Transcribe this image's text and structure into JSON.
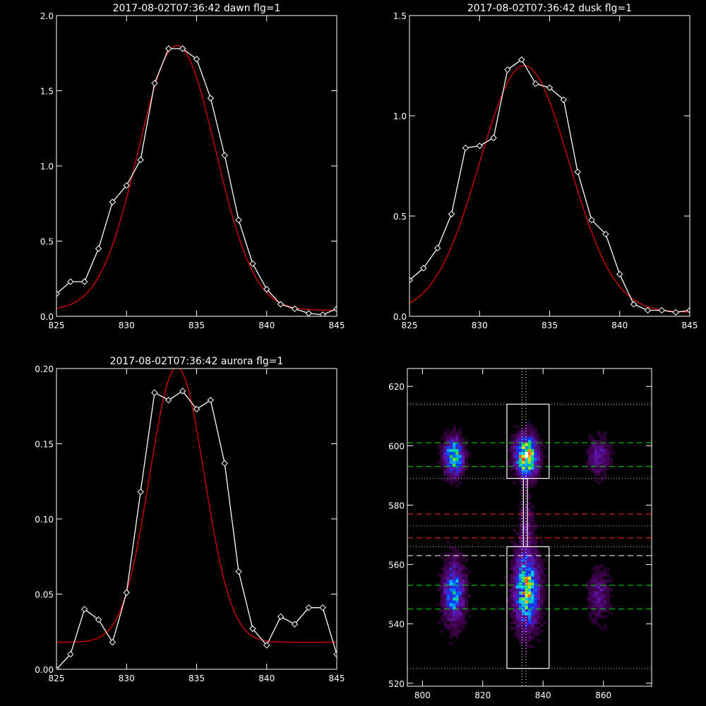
{
  "chart_data": [
    {
      "id": "dawn",
      "type": "line",
      "title": "2017-08-02T07:36:42 dawn flg=1",
      "xlim": [
        825,
        845
      ],
      "ylim": [
        0,
        2.0
      ],
      "xticks": [
        825,
        830,
        835,
        840,
        845
      ],
      "xtick_labels": [
        "825",
        "830",
        "835",
        "840",
        "845"
      ],
      "yticks": [
        0,
        0.5,
        1.0,
        1.5,
        2.0
      ],
      "ytick_labels": [
        "0.0",
        "0.5",
        "1.0",
        "1.5",
        "2.0"
      ],
      "series": [
        {
          "kind": "data",
          "color": "#ffffff",
          "marker": "diamond",
          "x": [
            825,
            826,
            827,
            828,
            829,
            830,
            831,
            832,
            833,
            834,
            835,
            836,
            837,
            838,
            839,
            840,
            841,
            842,
            843,
            844,
            845
          ],
          "y": [
            0.15,
            0.23,
            0.23,
            0.45,
            0.76,
            0.87,
            1.04,
            1.55,
            1.78,
            1.78,
            1.71,
            1.45,
            1.07,
            0.64,
            0.35,
            0.18,
            0.08,
            0.05,
            0.02,
            0.01,
            0.05
          ]
        },
        {
          "kind": "fit",
          "color": "#e00000",
          "model": "gaussian",
          "center": 833.6,
          "sigma": 2.75,
          "amplitude": 1.76,
          "baseline": 0.04
        }
      ]
    },
    {
      "id": "dusk",
      "type": "line",
      "title": "2017-08-02T07:36:42 dusk flg=1",
      "xlim": [
        825,
        845
      ],
      "ylim": [
        0,
        1.5
      ],
      "xticks": [
        825,
        830,
        835,
        840,
        845
      ],
      "xtick_labels": [
        "825",
        "830",
        "835",
        "840",
        "845"
      ],
      "yticks": [
        0,
        0.5,
        1.0,
        1.5
      ],
      "ytick_labels": [
        "0.0",
        "0.5",
        "1.0",
        "1.5"
      ],
      "series": [
        {
          "kind": "data",
          "color": "#ffffff",
          "marker": "diamond",
          "x": [
            825,
            826,
            827,
            828,
            829,
            830,
            831,
            832,
            833,
            834,
            835,
            836,
            837,
            838,
            839,
            840,
            841,
            842,
            843,
            844,
            845
          ],
          "y": [
            0.18,
            0.24,
            0.34,
            0.51,
            0.84,
            0.85,
            0.89,
            1.23,
            1.28,
            1.16,
            1.14,
            1.08,
            0.72,
            0.48,
            0.41,
            0.21,
            0.06,
            0.03,
            0.03,
            0.02,
            0.03
          ]
        },
        {
          "kind": "fit",
          "color": "#e00000",
          "model": "gaussian",
          "center": 833.2,
          "sigma": 3.2,
          "amplitude": 1.23,
          "baseline": 0.02
        }
      ]
    },
    {
      "id": "aurora",
      "type": "line",
      "title": "2017-08-02T07:36:42 aurora flg=1",
      "xlim": [
        825,
        845
      ],
      "ylim": [
        0,
        0.2
      ],
      "xticks": [
        825,
        830,
        835,
        840,
        845
      ],
      "xtick_labels": [
        "825",
        "830",
        "835",
        "840",
        "845"
      ],
      "yticks": [
        0,
        0.05,
        0.1,
        0.15,
        0.2
      ],
      "ytick_labels": [
        "0.00",
        "0.05",
        "0.10",
        "0.15",
        "0.20"
      ],
      "series": [
        {
          "kind": "data",
          "color": "#ffffff",
          "marker": "diamond",
          "x": [
            825,
            826,
            827,
            828,
            829,
            830,
            831,
            832,
            833,
            834,
            835,
            836,
            837,
            838,
            839,
            840,
            841,
            842,
            843,
            844,
            845
          ],
          "y": [
            0.0,
            0.01,
            0.04,
            0.033,
            0.018,
            0.051,
            0.118,
            0.184,
            0.179,
            0.185,
            0.173,
            0.179,
            0.137,
            0.065,
            0.027,
            0.016,
            0.035,
            0.03,
            0.041,
            0.041,
            0.01
          ]
        },
        {
          "kind": "fit",
          "color": "#e00000",
          "model": "gaussian",
          "center": 833.6,
          "sigma": 1.95,
          "amplitude": 0.183,
          "baseline": 0.018
        }
      ]
    },
    {
      "id": "image",
      "type": "heatmap",
      "title": "",
      "xlim": [
        795,
        876
      ],
      "ylim": [
        519,
        626
      ],
      "xticks": [
        800,
        820,
        840,
        860
      ],
      "xtick_labels": [
        "800",
        "820",
        "840",
        "860"
      ],
      "yticks": [
        520,
        540,
        560,
        580,
        600,
        620
      ],
      "ytick_labels": [
        "520",
        "540",
        "560",
        "580",
        "600",
        "620"
      ],
      "colormap": "rainbow-on-black",
      "blobs": [
        {
          "x": 810,
          "y": 596,
          "sx": 2.0,
          "sy": 4.0,
          "amp": 0.7
        },
        {
          "x": 810,
          "y": 550,
          "sx": 2.2,
          "sy": 6.5,
          "amp": 0.55
        },
        {
          "x": 834,
          "y": 596,
          "sx": 2.3,
          "sy": 4.2,
          "amp": 1.0
        },
        {
          "x": 834,
          "y": 551,
          "sx": 2.6,
          "sy": 8.0,
          "amp": 0.75
        },
        {
          "x": 834,
          "y": 573,
          "sx": 1.6,
          "sy": 6.0,
          "amp": 0.14
        },
        {
          "x": 858,
          "y": 596,
          "sx": 2.2,
          "sy": 4.0,
          "amp": 0.25
        },
        {
          "x": 858,
          "y": 549,
          "sx": 2.2,
          "sy": 5.0,
          "amp": 0.22
        }
      ],
      "boxes": [
        {
          "x0": 828,
          "x1": 842,
          "y0": 589,
          "y1": 614,
          "color": "#ffffff"
        },
        {
          "x0": 828,
          "x1": 842,
          "y0": 525,
          "y1": 566,
          "color": "#ffffff"
        }
      ],
      "connector": {
        "x0": 833.5,
        "x1": 834.8,
        "y0": 566,
        "y1": 589,
        "color": "#ffffff"
      },
      "vlines": [
        {
          "x": 833,
          "style": "dotted",
          "color": "#ffffff"
        },
        {
          "x": 834.3,
          "style": "dotted",
          "color": "#ffffff"
        }
      ],
      "hlines": [
        {
          "y": 614,
          "style": "dotted",
          "color": "#ff80ff"
        },
        {
          "y": 601,
          "style": "dashed",
          "color": "#00e000"
        },
        {
          "y": 593,
          "style": "dashed",
          "color": "#00e000"
        },
        {
          "y": 589,
          "style": "dotted",
          "color": "#ff80ff"
        },
        {
          "y": 577,
          "style": "dashed",
          "color": "#ff2020"
        },
        {
          "y": 573,
          "style": "dotted",
          "color": "#ff80ff"
        },
        {
          "y": 569,
          "style": "dashed",
          "color": "#ff2020"
        },
        {
          "y": 566,
          "style": "dotted",
          "color": "#ff80ff"
        },
        {
          "y": 563,
          "style": "dashed",
          "color": "#ffffff"
        },
        {
          "y": 553,
          "style": "dashed",
          "color": "#00e000"
        },
        {
          "y": 545,
          "style": "dashed",
          "color": "#00e000"
        },
        {
          "y": 525,
          "style": "dotted",
          "color": "#ff80ff"
        }
      ]
    }
  ]
}
